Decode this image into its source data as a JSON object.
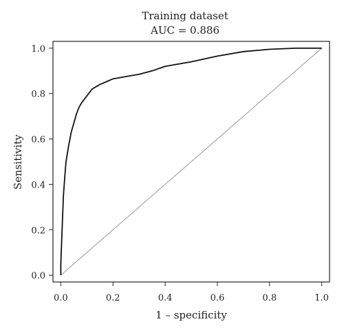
{
  "chart_data": {
    "type": "line",
    "title": "Training dataset",
    "subtitle": "AUC = 0.886",
    "xlabel": "1 – specificity",
    "ylabel": "Sensitivity",
    "xlim": [
      -0.03,
      1.03
    ],
    "ylim": [
      -0.03,
      1.03
    ],
    "grid": false,
    "x_ticks": [
      "0.0",
      "0.2",
      "0.4",
      "0.6",
      "0.8",
      "1.0"
    ],
    "y_ticks": [
      "0.0",
      "0.2",
      "0.4",
      "0.6",
      "0.8",
      "1.0"
    ],
    "reference_line": {
      "x": [
        0,
        1
      ],
      "y": [
        0,
        1
      ]
    },
    "series": [
      {
        "x": [
          0.0,
          0.0,
          0.005,
          0.01,
          0.015,
          0.02,
          0.03,
          0.04,
          0.05,
          0.06,
          0.07,
          0.08,
          0.1,
          0.12,
          0.15,
          0.18,
          0.2,
          0.25,
          0.3,
          0.35,
          0.4,
          0.5,
          0.6,
          0.7,
          0.8,
          0.9,
          1.0
        ],
        "y": [
          0.0,
          0.05,
          0.2,
          0.35,
          0.43,
          0.5,
          0.57,
          0.63,
          0.67,
          0.71,
          0.74,
          0.76,
          0.79,
          0.82,
          0.84,
          0.855,
          0.865,
          0.875,
          0.885,
          0.9,
          0.92,
          0.94,
          0.965,
          0.985,
          0.995,
          1.0,
          1.0
        ]
      }
    ]
  }
}
